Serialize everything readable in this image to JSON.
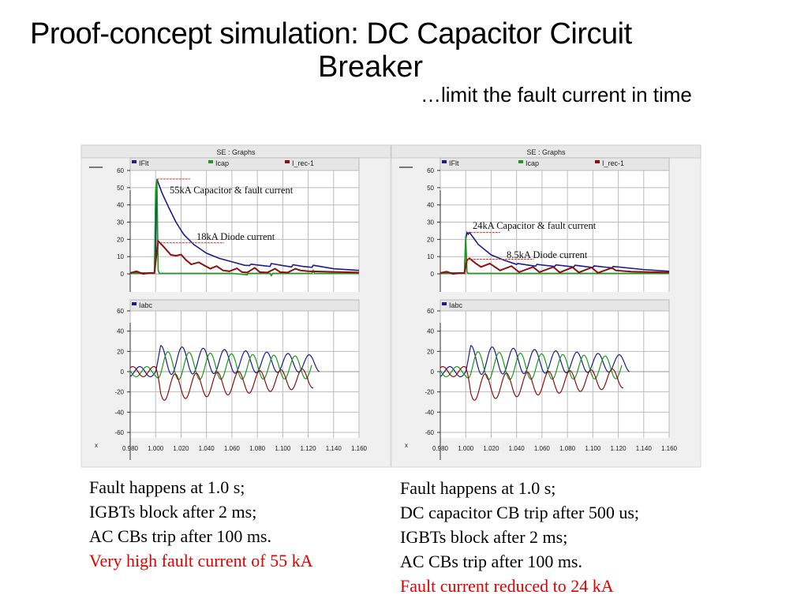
{
  "title_line1": "Proof-concept simulation: DC Capacitor Circuit",
  "title_line2": "Breaker",
  "subtitle": "…limit the fault current in time",
  "colors": {
    "iflt": "#1c1c8e",
    "icap": "#1a9a1a",
    "irec": "#8e1010",
    "annot": "#e03030",
    "highlight": "#e00000"
  },
  "chart_data": [
    {
      "type": "line",
      "window_title": "SE : Graphs",
      "top": {
        "legend": [
          "IFlt",
          "Icap",
          "I_rec-1"
        ],
        "yticks": [
          0,
          10,
          20,
          30,
          40,
          50,
          60
        ],
        "ylim": [
          -5,
          60
        ],
        "annotations": [
          {
            "text": "55kA Capacitor & fault current",
            "level": 55
          },
          {
            "text": "18kA Diode current",
            "level": 18
          }
        ],
        "series": [
          {
            "name": "IFlt",
            "points": [
              [
                0.98,
                0.5
              ],
              [
                0.999,
                0.5
              ],
              [
                1.0,
                10
              ],
              [
                1.001,
                55
              ],
              [
                1.005,
                47
              ],
              [
                1.01,
                39
              ],
              [
                1.016,
                30
              ],
              [
                1.022,
                23
              ],
              [
                1.03,
                17
              ],
              [
                1.04,
                12
              ],
              [
                1.05,
                9
              ],
              [
                1.06,
                7
              ],
              [
                1.07,
                5
              ],
              [
                1.074,
                4.8
              ],
              [
                1.075,
                5.6
              ],
              [
                1.082,
                5
              ],
              [
                1.09,
                4.3
              ],
              [
                1.091,
                6
              ],
              [
                1.1,
                4.8
              ],
              [
                1.107,
                4
              ],
              [
                1.108,
                5.3
              ],
              [
                1.116,
                4.3
              ],
              [
                1.123,
                3.8
              ],
              [
                1.124,
                5
              ],
              [
                1.14,
                3
              ],
              [
                1.16,
                2
              ]
            ]
          },
          {
            "name": "Icap",
            "points": [
              [
                0.98,
                0.3
              ],
              [
                0.999,
                0.3
              ],
              [
                1.0,
                48
              ],
              [
                1.001,
                55
              ],
              [
                1.002,
                2
              ],
              [
                1.003,
                0.3
              ],
              [
                1.06,
                0.3
              ],
              [
                1.072,
                -0.5
              ],
              [
                1.073,
                0.3
              ],
              [
                1.09,
                0.3
              ],
              [
                1.091,
                -1
              ],
              [
                1.092,
                0.3
              ],
              [
                1.123,
                0.3
              ],
              [
                1.124,
                2
              ],
              [
                1.125,
                0.3
              ],
              [
                1.16,
                0.3
              ]
            ]
          },
          {
            "name": "I_rec-1",
            "points": [
              [
                0.98,
                0.5
              ],
              [
                0.985,
                1.5
              ],
              [
                0.99,
                0
              ],
              [
                0.995,
                0.5
              ],
              [
                0.999,
                0.5
              ],
              [
                1.002,
                19
              ],
              [
                1.006,
                16
              ],
              [
                1.012,
                11
              ],
              [
                1.016,
                10.5
              ],
              [
                1.02,
                11.2
              ],
              [
                1.024,
                8
              ],
              [
                1.028,
                5.5
              ],
              [
                1.034,
                6.7
              ],
              [
                1.038,
                5
              ],
              [
                1.043,
                3
              ],
              [
                1.048,
                4.5
              ],
              [
                1.053,
                2
              ],
              [
                1.058,
                1.5
              ],
              [
                1.064,
                3.2
              ],
              [
                1.068,
                1
              ],
              [
                1.072,
                0.8
              ],
              [
                1.078,
                3.5
              ],
              [
                1.082,
                1
              ],
              [
                1.088,
                0.8
              ],
              [
                1.094,
                3
              ],
              [
                1.098,
                1
              ],
              [
                1.104,
                0.8
              ],
              [
                1.11,
                3
              ],
              [
                1.114,
                2
              ],
              [
                1.12,
                1.5
              ],
              [
                1.16,
                0.8
              ]
            ]
          }
        ]
      },
      "bottom": {
        "legend": [
          "Iabc"
        ],
        "yticks": [
          -60,
          -40,
          -20,
          0,
          20,
          40,
          60
        ],
        "ylim": [
          -60,
          60
        ],
        "waveform": {
          "freq_hz": 60,
          "fault_time": 1.0,
          "prefault_amp": 5,
          "end_time": [
            1.129,
            1.123,
            1.124
          ],
          "max_start": [
            26,
            20,
            -3
          ],
          "max_end": [
            16,
            15,
            3
          ],
          "min_start": [
            -3,
            -8,
            -29
          ],
          "min_end": [
            0,
            -7,
            -16
          ]
        }
      },
      "xticks": [
        "0.980",
        "1.000",
        "1.020",
        "1.040",
        "1.060",
        "1.080",
        "1.100",
        "1.120",
        "1.140",
        "1.160"
      ],
      "xlim": [
        0.98,
        1.16
      ],
      "xlabel": "x"
    },
    {
      "type": "line",
      "window_title": "SE : Graphs",
      "top": {
        "legend": [
          "IFlt",
          "Icap",
          "I_rec-1"
        ],
        "yticks": [
          0,
          10,
          20,
          30,
          40,
          50,
          60
        ],
        "ylim": [
          -5,
          60
        ],
        "annotations": [
          {
            "text": "24kA Capacitor & fault current",
            "level": 24
          },
          {
            "text": "8.5kA Diode current",
            "level": 8.5
          }
        ],
        "series": [
          {
            "name": "IFlt",
            "points": [
              [
                0.98,
                0.5
              ],
              [
                0.999,
                0.5
              ],
              [
                1.0,
                20
              ],
              [
                1.001,
                24
              ],
              [
                1.002,
                23
              ],
              [
                1.003,
                24
              ],
              [
                1.01,
                17
              ],
              [
                1.02,
                11
              ],
              [
                1.03,
                8
              ],
              [
                1.04,
                5.5
              ],
              [
                1.041,
                6
              ],
              [
                1.05,
                5
              ],
              [
                1.055,
                4.5
              ],
              [
                1.056,
                5.5
              ],
              [
                1.07,
                4.3
              ],
              [
                1.071,
                5.2
              ],
              [
                1.085,
                4
              ],
              [
                1.086,
                5
              ],
              [
                1.1,
                3.7
              ],
              [
                1.101,
                4.6
              ],
              [
                1.115,
                3.5
              ],
              [
                1.116,
                4.3
              ],
              [
                1.14,
                2.5
              ],
              [
                1.16,
                1.5
              ]
            ]
          },
          {
            "name": "Icap",
            "points": [
              [
                0.98,
                0.3
              ],
              [
                0.999,
                0.3
              ],
              [
                1.0,
                22
              ],
              [
                1.001,
                1
              ],
              [
                1.002,
                0.3
              ],
              [
                1.16,
                0.3
              ]
            ]
          },
          {
            "name": "I_rec-1",
            "points": [
              [
                0.98,
                0.5
              ],
              [
                0.985,
                1.3
              ],
              [
                0.99,
                0
              ],
              [
                0.995,
                0.5
              ],
              [
                0.999,
                0.5
              ],
              [
                1.001,
                8
              ],
              [
                1.003,
                9
              ],
              [
                1.008,
                6
              ],
              [
                1.012,
                4
              ],
              [
                1.019,
                6
              ],
              [
                1.027,
                2
              ],
              [
                1.036,
                4.5
              ],
              [
                1.042,
                1
              ],
              [
                1.053,
                4
              ],
              [
                1.058,
                1
              ],
              [
                1.069,
                4
              ],
              [
                1.074,
                0.8
              ],
              [
                1.084,
                3.8
              ],
              [
                1.089,
                0.8
              ],
              [
                1.099,
                3.7
              ],
              [
                1.104,
                0.6
              ],
              [
                1.115,
                3.5
              ],
              [
                1.118,
                2
              ],
              [
                1.13,
                1.3
              ],
              [
                1.16,
                0.8
              ]
            ]
          }
        ]
      },
      "bottom": {
        "legend": [
          "Iabc"
        ],
        "yticks": [
          -60,
          -40,
          -20,
          0,
          20,
          40,
          60
        ],
        "ylim": [
          -60,
          60
        ],
        "waveform": {
          "freq_hz": 60,
          "fault_time": 1.0,
          "prefault_amp": 5,
          "end_time": [
            1.129,
            1.123,
            1.124
          ],
          "max_start": [
            26,
            20,
            -3
          ],
          "max_end": [
            16,
            15,
            3
          ],
          "min_start": [
            -3,
            -8,
            -29
          ],
          "min_end": [
            0,
            -7,
            -16
          ]
        }
      },
      "xticks": [
        "0.980",
        "1.000",
        "1.020",
        "1.040",
        "1.060",
        "1.080",
        "1.100",
        "1.120",
        "1.140",
        "1.160"
      ],
      "xlim": [
        0.98,
        1.16
      ],
      "xlabel": "x"
    }
  ],
  "notes_left": [
    "Fault happens at 1.0 s;",
    "IGBTs block after 2 ms;",
    "AC CBs trip after 100 ms.",
    "Very high fault current of 55 kA"
  ],
  "notes_right": [
    "Fault happens at 1.0 s;",
    "DC capacitor CB trip after 500 us;",
    "IGBTs block after 2 ms;",
    "AC CBs trip after 100 ms.",
    "Fault current reduced to 24 kA"
  ]
}
